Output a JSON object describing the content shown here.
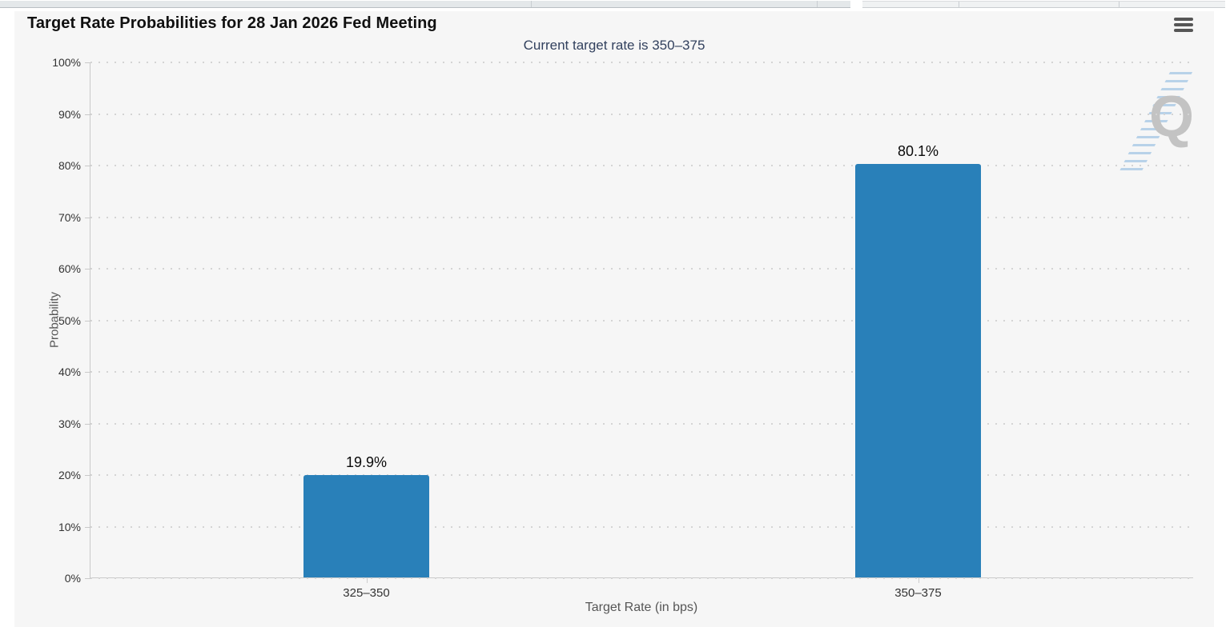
{
  "top_strip": {
    "note": "partially visible cut-off table row"
  },
  "chart": {
    "title": "Target Rate Probabilities for 28 Jan 2026 Fed Meeting",
    "subtitle": "Current target rate is 350–375",
    "menu_icon": "hamburger-menu-icon",
    "watermark_letter": "Q",
    "colors": {
      "bar": "#2980b9",
      "subtitle": "#32415e",
      "container_background": "#f6f6f6",
      "grid_dots": "#d4d4d4"
    }
  },
  "chart_data": {
    "type": "bar",
    "title": "Target Rate Probabilities for 28 Jan 2026 Fed Meeting",
    "subtitle": "Current target rate is 350–375",
    "categories": [
      "325–350",
      "350–375"
    ],
    "values": [
      19.9,
      80.1
    ],
    "data_labels": [
      "19.9%",
      "80.1%"
    ],
    "xlabel": "Target Rate (in bps)",
    "ylabel": "Probability",
    "ylim": [
      0,
      100
    ],
    "y_tick_step": 10,
    "y_tick_labels": [
      "0%",
      "10%",
      "20%",
      "30%",
      "40%",
      "50%",
      "60%",
      "70%",
      "80%",
      "90%",
      "100%"
    ],
    "grid": "horizontal dotted gridlines",
    "legend": "none",
    "bar_color": "#2980b9"
  }
}
